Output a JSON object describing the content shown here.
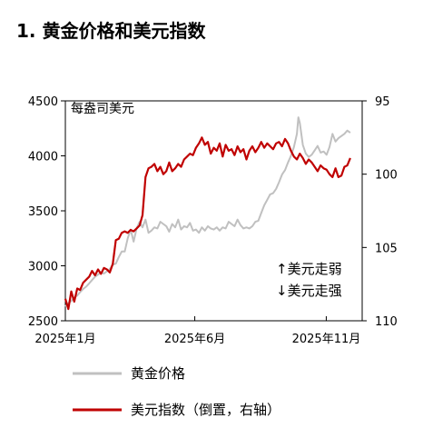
{
  "title": "1. 黄金价格和美元指数",
  "chart_data": {
    "type": "line",
    "unit_label": "每盎司美元",
    "annotation_up": "↑美元走弱",
    "annotation_down": "↓美元走强",
    "x_ticks": [
      {
        "label": "2025年1月",
        "t": 0
      },
      {
        "label": "2025年6月",
        "t": 0.436
      },
      {
        "label": "2025年11月",
        "t": 0.879
      }
    ],
    "y_left": {
      "min": 2500,
      "max": 4500,
      "ticks": [
        2500,
        3000,
        3500,
        4000,
        4500
      ]
    },
    "y_right": {
      "min": 95,
      "max": 110,
      "inverted": true,
      "ticks": [
        95,
        100,
        105,
        110
      ]
    },
    "legend": [
      {
        "name": "黄金价格",
        "color": "#c0c0c0"
      },
      {
        "name": "美元指数（倒置，右轴）",
        "color": "#c00000"
      }
    ],
    "series": [
      {
        "name": "黄金价格",
        "axis": "left",
        "color": "#c0c0c0",
        "points": [
          [
            0.0,
            2630
          ],
          [
            0.01,
            2660
          ],
          [
            0.02,
            2680
          ],
          [
            0.03,
            2710
          ],
          [
            0.04,
            2730
          ],
          [
            0.05,
            2760
          ],
          [
            0.06,
            2790
          ],
          [
            0.07,
            2810
          ],
          [
            0.08,
            2840
          ],
          [
            0.09,
            2870
          ],
          [
            0.1,
            2900
          ],
          [
            0.11,
            2920
          ],
          [
            0.12,
            2940
          ],
          [
            0.13,
            2930
          ],
          [
            0.14,
            2950
          ],
          [
            0.15,
            2970
          ],
          [
            0.16,
            3010
          ],
          [
            0.17,
            3020
          ],
          [
            0.18,
            3080
          ],
          [
            0.19,
            3130
          ],
          [
            0.2,
            3130
          ],
          [
            0.21,
            3250
          ],
          [
            0.22,
            3330
          ],
          [
            0.23,
            3220
          ],
          [
            0.24,
            3340
          ],
          [
            0.25,
            3400
          ],
          [
            0.26,
            3350
          ],
          [
            0.27,
            3420
          ],
          [
            0.28,
            3300
          ],
          [
            0.29,
            3320
          ],
          [
            0.3,
            3350
          ],
          [
            0.31,
            3340
          ],
          [
            0.32,
            3400
          ],
          [
            0.33,
            3380
          ],
          [
            0.34,
            3360
          ],
          [
            0.35,
            3310
          ],
          [
            0.36,
            3380
          ],
          [
            0.37,
            3350
          ],
          [
            0.38,
            3420
          ],
          [
            0.39,
            3330
          ],
          [
            0.4,
            3360
          ],
          [
            0.41,
            3350
          ],
          [
            0.42,
            3390
          ],
          [
            0.43,
            3320
          ],
          [
            0.44,
            3330
          ],
          [
            0.45,
            3300
          ],
          [
            0.46,
            3350
          ],
          [
            0.47,
            3320
          ],
          [
            0.48,
            3360
          ],
          [
            0.49,
            3340
          ],
          [
            0.5,
            3330
          ],
          [
            0.51,
            3350
          ],
          [
            0.52,
            3320
          ],
          [
            0.53,
            3350
          ],
          [
            0.54,
            3340
          ],
          [
            0.55,
            3400
          ],
          [
            0.56,
            3380
          ],
          [
            0.57,
            3360
          ],
          [
            0.58,
            3420
          ],
          [
            0.59,
            3370
          ],
          [
            0.6,
            3340
          ],
          [
            0.61,
            3350
          ],
          [
            0.62,
            3340
          ],
          [
            0.63,
            3360
          ],
          [
            0.64,
            3400
          ],
          [
            0.65,
            3410
          ],
          [
            0.66,
            3480
          ],
          [
            0.67,
            3550
          ],
          [
            0.68,
            3600
          ],
          [
            0.69,
            3650
          ],
          [
            0.7,
            3660
          ],
          [
            0.71,
            3700
          ],
          [
            0.72,
            3760
          ],
          [
            0.73,
            3830
          ],
          [
            0.74,
            3870
          ],
          [
            0.75,
            3940
          ],
          [
            0.76,
            4000
          ],
          [
            0.77,
            4080
          ],
          [
            0.78,
            4200
          ],
          [
            0.785,
            4350
          ],
          [
            0.79,
            4300
          ],
          [
            0.8,
            4100
          ],
          [
            0.81,
            4020
          ],
          [
            0.82,
            3990
          ],
          [
            0.83,
            4010
          ],
          [
            0.84,
            4050
          ],
          [
            0.85,
            4090
          ],
          [
            0.86,
            4030
          ],
          [
            0.87,
            4040
          ],
          [
            0.88,
            4010
          ],
          [
            0.89,
            4080
          ],
          [
            0.9,
            4200
          ],
          [
            0.91,
            4130
          ],
          [
            0.92,
            4160
          ],
          [
            0.93,
            4180
          ],
          [
            0.94,
            4200
          ],
          [
            0.95,
            4230
          ],
          [
            0.96,
            4210
          ]
        ]
      },
      {
        "name": "美元指数（倒置，右轴）",
        "axis": "right",
        "color": "#c00000",
        "points": [
          [
            0.0,
            108.5
          ],
          [
            0.01,
            109.2
          ],
          [
            0.02,
            108.0
          ],
          [
            0.03,
            108.7
          ],
          [
            0.04,
            107.8
          ],
          [
            0.05,
            107.9
          ],
          [
            0.06,
            107.4
          ],
          [
            0.07,
            107.2
          ],
          [
            0.08,
            107.0
          ],
          [
            0.09,
            106.6
          ],
          [
            0.1,
            106.9
          ],
          [
            0.11,
            106.5
          ],
          [
            0.12,
            106.8
          ],
          [
            0.13,
            106.4
          ],
          [
            0.14,
            106.5
          ],
          [
            0.15,
            106.7
          ],
          [
            0.16,
            106.1
          ],
          [
            0.17,
            104.5
          ],
          [
            0.18,
            104.4
          ],
          [
            0.19,
            104.0
          ],
          [
            0.2,
            103.9
          ],
          [
            0.21,
            104.0
          ],
          [
            0.22,
            103.8
          ],
          [
            0.23,
            103.9
          ],
          [
            0.24,
            103.7
          ],
          [
            0.25,
            103.5
          ],
          [
            0.26,
            102.8
          ],
          [
            0.27,
            100.2
          ],
          [
            0.28,
            99.6
          ],
          [
            0.29,
            99.5
          ],
          [
            0.3,
            99.3
          ],
          [
            0.31,
            99.8
          ],
          [
            0.32,
            99.5
          ],
          [
            0.33,
            100.0
          ],
          [
            0.34,
            99.8
          ],
          [
            0.35,
            99.2
          ],
          [
            0.36,
            99.8
          ],
          [
            0.37,
            99.6
          ],
          [
            0.38,
            99.3
          ],
          [
            0.39,
            99.5
          ],
          [
            0.4,
            99.0
          ],
          [
            0.41,
            98.8
          ],
          [
            0.42,
            98.6
          ],
          [
            0.43,
            98.7
          ],
          [
            0.44,
            98.2
          ],
          [
            0.45,
            97.9
          ],
          [
            0.46,
            97.5
          ],
          [
            0.47,
            98.0
          ],
          [
            0.48,
            97.8
          ],
          [
            0.49,
            98.6
          ],
          [
            0.5,
            98.2
          ],
          [
            0.51,
            98.4
          ],
          [
            0.52,
            97.9
          ],
          [
            0.53,
            98.8
          ],
          [
            0.54,
            98.0
          ],
          [
            0.55,
            98.4
          ],
          [
            0.56,
            98.3
          ],
          [
            0.57,
            98.7
          ],
          [
            0.58,
            98.1
          ],
          [
            0.59,
            98.5
          ],
          [
            0.6,
            98.3
          ],
          [
            0.61,
            99.0
          ],
          [
            0.62,
            98.4
          ],
          [
            0.63,
            98.1
          ],
          [
            0.64,
            98.5
          ],
          [
            0.65,
            98.2
          ],
          [
            0.66,
            97.8
          ],
          [
            0.67,
            98.2
          ],
          [
            0.68,
            97.9
          ],
          [
            0.69,
            98.1
          ],
          [
            0.7,
            98.3
          ],
          [
            0.71,
            97.9
          ],
          [
            0.72,
            97.8
          ],
          [
            0.73,
            98.1
          ],
          [
            0.74,
            97.6
          ],
          [
            0.75,
            97.9
          ],
          [
            0.76,
            98.4
          ],
          [
            0.77,
            98.8
          ],
          [
            0.78,
            99.0
          ],
          [
            0.79,
            98.6
          ],
          [
            0.8,
            98.9
          ],
          [
            0.81,
            99.3
          ],
          [
            0.82,
            99.0
          ],
          [
            0.83,
            99.2
          ],
          [
            0.84,
            99.5
          ],
          [
            0.85,
            99.8
          ],
          [
            0.86,
            99.4
          ],
          [
            0.87,
            99.6
          ],
          [
            0.88,
            99.7
          ],
          [
            0.89,
            100.0
          ],
          [
            0.9,
            100.2
          ],
          [
            0.91,
            99.6
          ],
          [
            0.92,
            100.2
          ],
          [
            0.93,
            100.1
          ],
          [
            0.94,
            99.5
          ],
          [
            0.95,
            99.4
          ],
          [
            0.96,
            98.9
          ]
        ]
      }
    ]
  }
}
